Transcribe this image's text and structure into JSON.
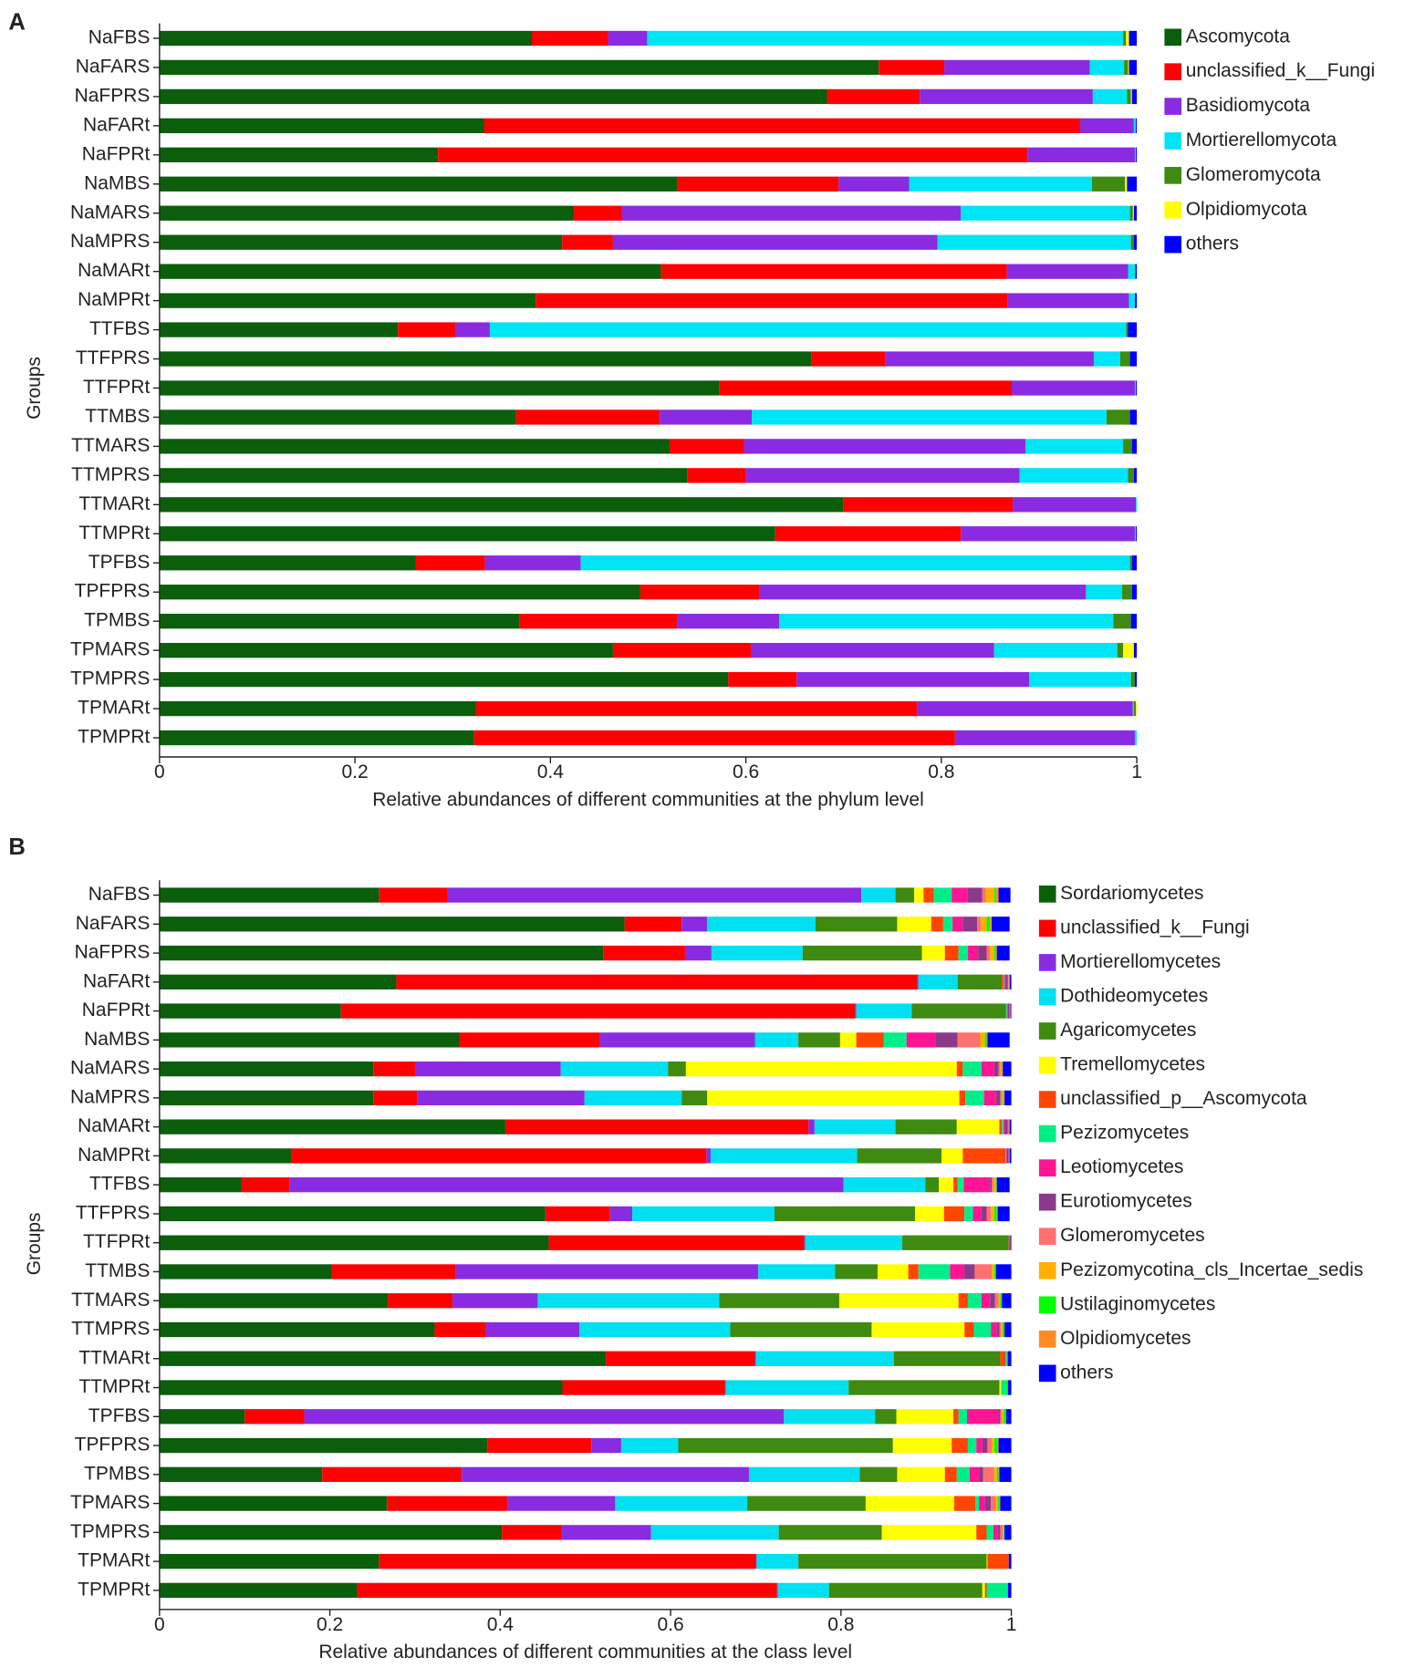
{
  "chart_data": [
    {
      "type": "bar",
      "orientation": "horizontal",
      "stacked": true,
      "panel_label": "A",
      "xlabel": "Relative abundances of different communities at the phylum level",
      "ylabel": "Groups",
      "categories": [
        "NaFBS",
        "NaFARS",
        "NaFPRS",
        "NaFARt",
        "NaFPRt",
        "NaMBS",
        "NaMARS",
        "NaMPRS",
        "NaMARt",
        "NaMPRt",
        "TTFBS",
        "TTFPRS",
        "TTFPRt",
        "TTMBS",
        "TTMARS",
        "TTMPRS",
        "TTMARt",
        "TTMPRt",
        "TPFBS",
        "TPFPRS",
        "TPMBS",
        "TPMARS",
        "TPMPRS",
        "TPMARt",
        "TPMPRt"
      ],
      "xlim": [
        0,
        1
      ],
      "xticks": [
        0,
        0.2,
        0.4,
        0.6,
        0.8,
        1
      ],
      "legend": "right",
      "series": [
        {
          "name": "Ascomycota",
          "color": "#0b5e0b",
          "values": [
            0.381,
            0.736,
            0.683,
            0.332,
            0.285,
            0.53,
            0.424,
            0.412,
            0.513,
            0.385,
            0.244,
            0.667,
            0.573,
            0.365,
            0.522,
            0.54,
            0.7,
            0.63,
            0.262,
            0.492,
            0.368,
            0.464,
            0.582,
            0.324,
            0.322
          ]
        },
        {
          "name": "unclassified_k__Fungi",
          "color": "#ff0000",
          "values": [
            0.078,
            0.067,
            0.095,
            0.61,
            0.603,
            0.165,
            0.049,
            0.052,
            0.354,
            0.483,
            0.059,
            0.076,
            0.299,
            0.147,
            0.076,
            0.06,
            0.173,
            0.19,
            0.071,
            0.122,
            0.162,
            0.141,
            0.07,
            0.451,
            0.492
          ]
        },
        {
          "name": "Basidiomycota",
          "color": "#8a2be2",
          "values": [
            0.04,
            0.149,
            0.177,
            0.055,
            0.11,
            0.072,
            0.347,
            0.332,
            0.124,
            0.124,
            0.035,
            0.213,
            0.126,
            0.094,
            0.288,
            0.28,
            0.126,
            0.178,
            0.098,
            0.334,
            0.104,
            0.249,
            0.238,
            0.221,
            0.184
          ]
        },
        {
          "name": "Mortierellomycota",
          "color": "#00e5f5",
          "values": [
            0.487,
            0.035,
            0.035,
            0.002,
            0.001,
            0.187,
            0.173,
            0.198,
            0.007,
            0.006,
            0.651,
            0.027,
            0.001,
            0.363,
            0.1,
            0.111,
            0.001,
            0.001,
            0.562,
            0.037,
            0.342,
            0.126,
            0.104,
            0.001,
            0.002
          ]
        },
        {
          "name": "Glomeromycota",
          "color": "#3f8a10",
          "values": [
            0.003,
            0.004,
            0.004,
            0,
            0,
            0.034,
            0.003,
            0.003,
            0.001,
            0,
            0.002,
            0.01,
            0,
            0.024,
            0.009,
            0.006,
            0,
            0,
            0.002,
            0.01,
            0.018,
            0.006,
            0.004,
            0.002,
            0
          ]
        },
        {
          "name": "Olpidiomycota",
          "color": "#ffff00",
          "values": [
            0.003,
            0.001,
            0.001,
            0,
            0,
            0.002,
            0.001,
            0,
            0,
            0,
            0,
            0,
            0,
            0,
            0,
            0,
            0,
            0,
            0,
            0,
            0,
            0.011,
            0,
            0.001,
            0
          ]
        },
        {
          "name": "others",
          "color": "#0000ff",
          "values": [
            0.008,
            0.008,
            0.005,
            0.001,
            0.001,
            0.01,
            0.003,
            0.003,
            0.001,
            0.002,
            0.009,
            0.007,
            0.001,
            0.007,
            0.005,
            0.003,
            0,
            0.001,
            0.005,
            0.005,
            0.006,
            0.003,
            0.002,
            0,
            0
          ]
        }
      ]
    },
    {
      "type": "bar",
      "orientation": "horizontal",
      "stacked": true,
      "panel_label": "B",
      "xlabel": "Relative abundances of different communities at the class level",
      "ylabel": "Groups",
      "categories": [
        "NaFBS",
        "NaFARS",
        "NaFPRS",
        "NaFARt",
        "NaFPRt",
        "NaMBS",
        "NaMARS",
        "NaMPRS",
        "NaMARt",
        "NaMPRt",
        "TTFBS",
        "TTFPRS",
        "TTFPRt",
        "TTMBS",
        "TTMARS",
        "TTMPRS",
        "TTMARt",
        "TTMPRt",
        "TPFBS",
        "TPFPRS",
        "TPMBS",
        "TPMARS",
        "TPMPRS",
        "TPMARt",
        "TPMPRt"
      ],
      "xlim": [
        0,
        1
      ],
      "xticks": [
        0,
        0.2,
        0.4,
        0.6,
        0.8,
        1
      ],
      "legend": "right",
      "series": [
        {
          "name": "Sordariomycetes",
          "color": "#0b5e0b",
          "values": [
            0.258,
            0.546,
            0.521,
            0.278,
            0.213,
            0.352,
            0.251,
            0.251,
            0.406,
            0.155,
            0.096,
            0.453,
            0.457,
            0.202,
            0.268,
            0.323,
            0.524,
            0.473,
            0.1,
            0.385,
            0.191,
            0.267,
            0.402,
            0.258,
            0.232
          ]
        },
        {
          "name": "unclassified_k__Fungi",
          "color": "#ff0000",
          "values": [
            0.08,
            0.067,
            0.096,
            0.612,
            0.604,
            0.165,
            0.049,
            0.052,
            0.356,
            0.487,
            0.057,
            0.076,
            0.3,
            0.146,
            0.076,
            0.06,
            0.175,
            0.191,
            0.07,
            0.122,
            0.164,
            0.142,
            0.07,
            0.442,
            0.493
          ]
        },
        {
          "name": "Mortierellomycetes",
          "color": "#8a2be2",
          "values": [
            0.486,
            0.03,
            0.031,
            0.001,
            0.001,
            0.182,
            0.171,
            0.196,
            0.007,
            0.005,
            0.65,
            0.026,
            0.001,
            0.355,
            0.1,
            0.11,
            0.001,
            0.001,
            0.563,
            0.035,
            0.337,
            0.126,
            0.105,
            0.001,
            0.001
          ]
        },
        {
          "name": "Dothideomycetes",
          "color": "#00e0f0",
          "values": [
            0.04,
            0.127,
            0.107,
            0.046,
            0.065,
            0.051,
            0.126,
            0.114,
            0.095,
            0.172,
            0.096,
            0.167,
            0.114,
            0.09,
            0.213,
            0.177,
            0.162,
            0.144,
            0.107,
            0.067,
            0.13,
            0.155,
            0.15,
            0.049,
            0.06
          ]
        },
        {
          "name": "Agaricomycetes",
          "color": "#3f8a10",
          "values": [
            0.022,
            0.096,
            0.14,
            0.052,
            0.11,
            0.049,
            0.021,
            0.03,
            0.072,
            0.099,
            0.016,
            0.165,
            0.125,
            0.05,
            0.141,
            0.166,
            0.125,
            0.177,
            0.025,
            0.252,
            0.044,
            0.139,
            0.121,
            0.221,
            0.18
          ]
        },
        {
          "name": "Tremellomycetes",
          "color": "#ffff00",
          "values": [
            0.011,
            0.04,
            0.027,
            0,
            0,
            0.019,
            0.318,
            0.296,
            0.05,
            0.025,
            0.017,
            0.034,
            0,
            0.036,
            0.14,
            0.109,
            0,
            0.002,
            0.067,
            0.069,
            0.056,
            0.104,
            0.111,
            0.001,
            0.003
          ]
        },
        {
          "name": "unclassified_p__Ascomycota",
          "color": "#ff4500",
          "values": [
            0.012,
            0.014,
            0.016,
            0.002,
            0.001,
            0.032,
            0.007,
            0.007,
            0.003,
            0.05,
            0.005,
            0.024,
            0.002,
            0.012,
            0.011,
            0.011,
            0.006,
            0,
            0.006,
            0.019,
            0.014,
            0.025,
            0.012,
            0.025,
            0.002
          ]
        },
        {
          "name": "Pezizomycetes",
          "color": "#00ee88",
          "values": [
            0.021,
            0.011,
            0.011,
            0.001,
            0.001,
            0.027,
            0.022,
            0.022,
            0.002,
            0.001,
            0.007,
            0.01,
            0,
            0.037,
            0.016,
            0.02,
            0.002,
            0.006,
            0.01,
            0.01,
            0.015,
            0.004,
            0.008,
            0,
            0.025
          ]
        },
        {
          "name": "Leotiomycetes",
          "color": "#ff1493",
          "values": [
            0.019,
            0.012,
            0.012,
            0.002,
            0.001,
            0.034,
            0.015,
            0.014,
            0.002,
            0.001,
            0.031,
            0.01,
            0,
            0.016,
            0.01,
            0.007,
            0.001,
            0,
            0.037,
            0.007,
            0.011,
            0.007,
            0.005,
            0,
            0
          ]
        },
        {
          "name": "Eurotiomycetes",
          "color": "#8b3a8b",
          "values": [
            0.017,
            0.017,
            0.01,
            0.002,
            0.002,
            0.026,
            0.005,
            0.005,
            0.003,
            0.002,
            0.002,
            0.006,
            0,
            0.013,
            0.006,
            0.003,
            0,
            0,
            0.002,
            0.006,
            0.005,
            0.007,
            0.003,
            0,
            0
          ]
        },
        {
          "name": "Glomeromycetes",
          "color": "#ff7070",
          "values": [
            0.004,
            0.004,
            0.004,
            0.001,
            0.001,
            0.026,
            0.002,
            0.002,
            0.002,
            0.001,
            0.002,
            0.005,
            0,
            0.02,
            0.004,
            0.002,
            0,
            0,
            0.002,
            0.005,
            0.013,
            0.006,
            0.003,
            0,
            0
          ]
        },
        {
          "name": "Pezizomycotina_cls_Incertae_sedis",
          "color": "#ffb000",
          "values": [
            0.01,
            0.007,
            0.005,
            0.001,
            0,
            0.006,
            0.001,
            0.001,
            0,
            0,
            0.003,
            0.004,
            0,
            0.003,
            0.002,
            0.002,
            0,
            0,
            0.002,
            0.003,
            0.003,
            0.002,
            0.001,
            0,
            0
          ]
        },
        {
          "name": "Ustilaginomycetes",
          "color": "#00ff00",
          "values": [
            0.002,
            0.004,
            0.002,
            0,
            0,
            0.002,
            0.001,
            0.001,
            0,
            0,
            0.001,
            0.003,
            0,
            0.002,
            0.002,
            0.002,
            0,
            0.002,
            0.003,
            0.004,
            0.002,
            0.002,
            0.001,
            0,
            0
          ]
        },
        {
          "name": "Olpidiomycetes",
          "color": "#ff8c20",
          "values": [
            0.003,
            0.002,
            0.001,
            0,
            0,
            0.001,
            0.001,
            0.001,
            0,
            0,
            0,
            0.001,
            0,
            0,
            0,
            0,
            0,
            0,
            0,
            0.001,
            0.001,
            0.001,
            0,
            0,
            0
          ]
        },
        {
          "name": "others",
          "color": "#0000ff",
          "values": [
            0.014,
            0.021,
            0.015,
            0.002,
            0.001,
            0.026,
            0.01,
            0.008,
            0.002,
            0.002,
            0.015,
            0.014,
            0.001,
            0.018,
            0.011,
            0.008,
            0.004,
            0.004,
            0.006,
            0.015,
            0.014,
            0.013,
            0.008,
            0.003,
            0.004
          ]
        }
      ]
    }
  ]
}
